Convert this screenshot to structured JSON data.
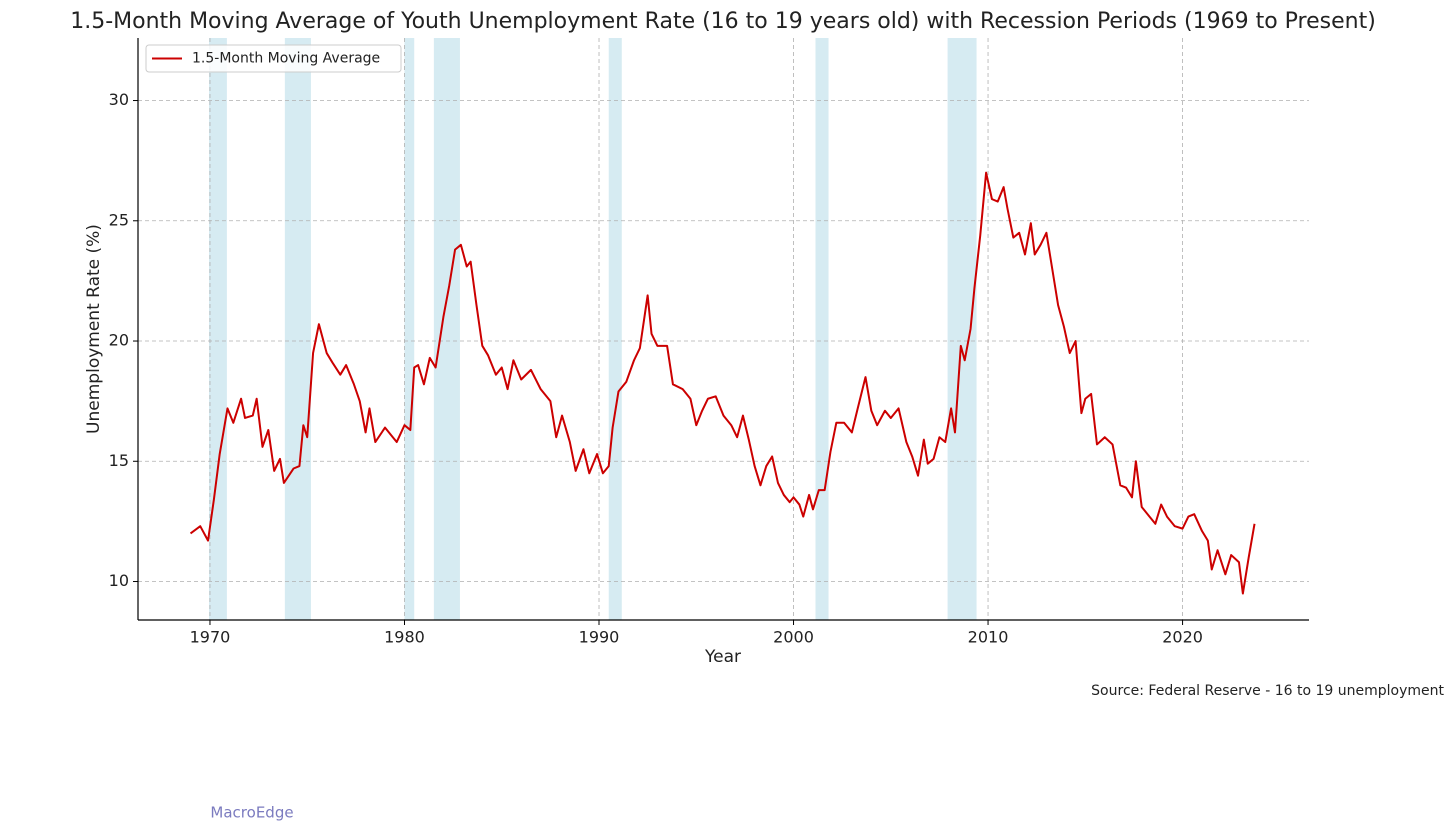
{
  "chart_data": {
    "type": "line",
    "title": "1.5-Month Moving Average of Youth Unemployment Rate (16 to 19 years old) with Recession Periods (1969 to Present)",
    "xlabel": "Year",
    "ylabel": "Unemployment Rate (%)",
    "source": "Source: Federal Reserve - 16 to 19 unemployment",
    "watermark": "MacroEdge",
    "xlim": [
      1966.3,
      2026.5
    ],
    "ylim": [
      8.4,
      32.6
    ],
    "xticks": [
      1970,
      1980,
      1990,
      2000,
      2010,
      2020
    ],
    "yticks": [
      10,
      15,
      20,
      25,
      30
    ],
    "grid": true,
    "legend": "upper left",
    "recession_color": "#add8e6",
    "recessions": [
      [
        1969.95,
        1970.87
      ],
      [
        1973.85,
        1975.19
      ],
      [
        1980.0,
        1980.5
      ],
      [
        1981.51,
        1982.85
      ],
      [
        1990.5,
        1991.17
      ],
      [
        2001.13,
        2001.8
      ],
      [
        2007.92,
        2009.41
      ]
    ],
    "x": [
      1969.0,
      1969.5,
      1969.9,
      1970.2,
      1970.5,
      1970.9,
      1971.2,
      1971.6,
      1971.8,
      1972.2,
      1972.4,
      1972.7,
      1973.0,
      1973.3,
      1973.6,
      1973.8,
      1974.3,
      1974.6,
      1974.8,
      1975.0,
      1975.3,
      1975.6,
      1976.0,
      1976.3,
      1976.7,
      1977.0,
      1977.4,
      1977.7,
      1978.0,
      1978.2,
      1978.5,
      1979.0,
      1979.4,
      1979.6,
      1980.0,
      1980.3,
      1980.5,
      1980.7,
      1981.0,
      1981.3,
      1981.6,
      1982.0,
      1982.3,
      1982.6,
      1982.9,
      1983.2,
      1983.4,
      1983.7,
      1984.0,
      1984.3,
      1984.7,
      1985.0,
      1985.3,
      1985.6,
      1986.0,
      1986.5,
      1987.0,
      1987.5,
      1987.8,
      1988.1,
      1988.5,
      1988.8,
      1989.2,
      1989.5,
      1989.9,
      1990.2,
      1990.5,
      1990.7,
      1991.0,
      1991.4,
      1991.8,
      1992.1,
      1992.5,
      1992.7,
      1993.0,
      1993.5,
      1993.8,
      1994.3,
      1994.7,
      1995.0,
      1995.3,
      1995.6,
      1996.0,
      1996.4,
      1996.8,
      1997.1,
      1997.4,
      1997.7,
      1998.0,
      1998.3,
      1998.6,
      1998.9,
      1999.2,
      1999.5,
      1999.8,
      2000.0,
      2000.3,
      2000.5,
      2000.8,
      2001.0,
      2001.3,
      2001.6,
      2001.9,
      2002.2,
      2002.6,
      2003.0,
      2003.3,
      2003.7,
      2004.0,
      2004.3,
      2004.7,
      2005.0,
      2005.4,
      2005.8,
      2006.1,
      2006.4,
      2006.7,
      2006.9,
      2007.2,
      2007.5,
      2007.8,
      2008.1,
      2008.3,
      2008.6,
      2008.8,
      2009.1,
      2009.3,
      2009.6,
      2009.9,
      2010.2,
      2010.5,
      2010.8,
      2011.0,
      2011.3,
      2011.6,
      2011.9,
      2012.2,
      2012.4,
      2012.7,
      2013.0,
      2013.3,
      2013.6,
      2013.9,
      2014.2,
      2014.5,
      2014.8,
      2015.0,
      2015.3,
      2015.6,
      2016.0,
      2016.4,
      2016.8,
      2017.1,
      2017.4,
      2017.6,
      2017.9,
      2018.3,
      2018.6,
      2018.9,
      2019.2,
      2019.6,
      2020.0,
      2020.3,
      2020.6,
      2021.0,
      2021.3,
      2021.5,
      2021.8,
      2022.2,
      2022.5,
      2022.9,
      2023.1,
      2023.4,
      2023.7
    ],
    "series": [
      {
        "name": "1.5-Month Moving Average",
        "color": "#cc0000",
        "values": [
          12.0,
          12.3,
          11.7,
          13.4,
          15.3,
          17.2,
          16.6,
          17.6,
          16.8,
          16.9,
          17.6,
          15.6,
          16.3,
          14.6,
          15.1,
          14.1,
          14.7,
          14.8,
          16.5,
          16.0,
          19.5,
          20.7,
          19.5,
          19.1,
          18.6,
          19.0,
          18.2,
          17.5,
          16.2,
          17.2,
          15.8,
          16.4,
          16.0,
          15.8,
          16.5,
          16.3,
          18.9,
          19.0,
          18.2,
          19.3,
          18.9,
          21.0,
          22.3,
          23.8,
          24.0,
          23.1,
          23.3,
          21.5,
          19.8,
          19.4,
          18.6,
          18.9,
          18.0,
          19.2,
          18.4,
          18.8,
          18.0,
          17.5,
          16.0,
          16.9,
          15.8,
          14.6,
          15.5,
          14.5,
          15.3,
          14.5,
          14.8,
          16.4,
          17.9,
          18.3,
          19.2,
          19.7,
          21.9,
          20.3,
          19.8,
          19.8,
          18.2,
          18.0,
          17.6,
          16.5,
          17.1,
          17.6,
          17.7,
          16.9,
          16.5,
          16.0,
          16.9,
          15.9,
          14.8,
          14.0,
          14.8,
          15.2,
          14.1,
          13.6,
          13.3,
          13.5,
          13.2,
          12.7,
          13.6,
          13.0,
          13.8,
          13.8,
          15.4,
          16.6,
          16.6,
          16.2,
          17.2,
          18.5,
          17.1,
          16.5,
          17.1,
          16.8,
          17.2,
          15.8,
          15.2,
          14.4,
          15.9,
          14.9,
          15.1,
          16.0,
          15.8,
          17.2,
          16.2,
          19.8,
          19.2,
          20.5,
          22.2,
          24.4,
          27.0,
          25.9,
          25.8,
          26.4,
          25.5,
          24.3,
          24.5,
          23.6,
          24.9,
          23.6,
          24.0,
          24.5,
          23.0,
          21.5,
          20.6,
          19.5,
          20.0,
          17.0,
          17.6,
          17.8,
          15.7,
          16.0,
          15.7,
          14.0,
          13.9,
          13.5,
          15.0,
          13.1,
          12.7,
          12.4,
          13.2,
          12.7,
          12.3,
          12.2,
          12.7,
          12.8,
          12.1,
          11.7,
          10.5,
          11.3,
          10.3,
          11.1,
          10.8,
          9.5,
          11.0,
          12.4
        ]
      }
    ]
  }
}
